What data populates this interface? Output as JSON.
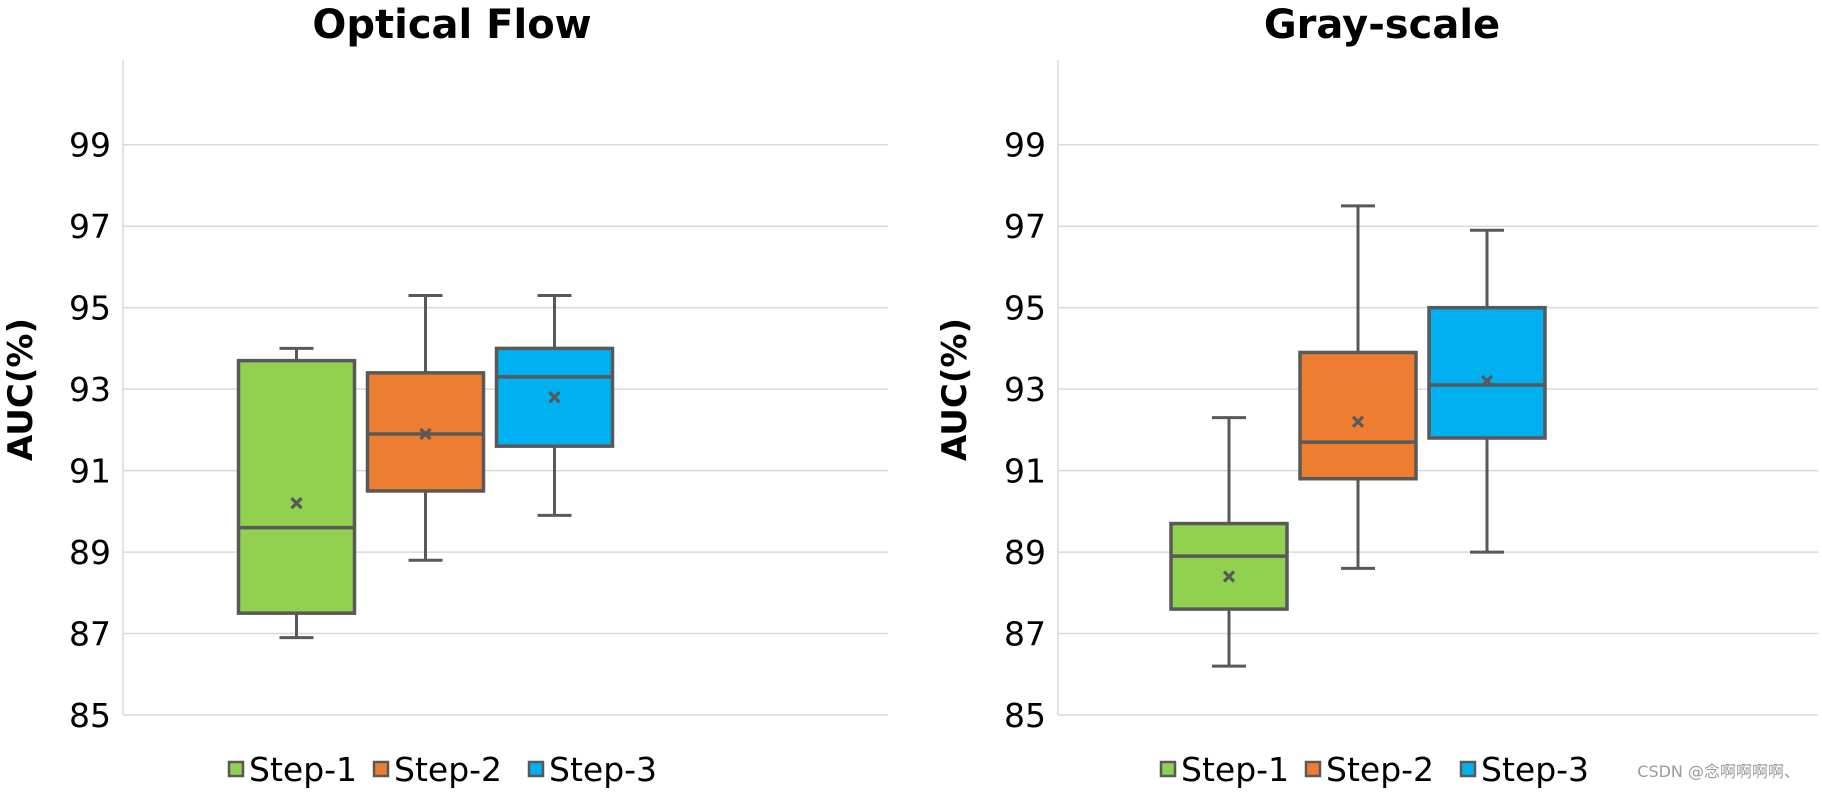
{
  "watermark": "CSDN @念啊啊啊啊、",
  "chart_data": [
    {
      "type": "box",
      "title": "Optical Flow",
      "ylabel": "AUC(%)",
      "ylim": [
        85,
        100
      ],
      "yticks": [
        85,
        87,
        89,
        91,
        93,
        95,
        97,
        99
      ],
      "grid": true,
      "legend_position": "bottom",
      "series": [
        {
          "name": "Step-1",
          "color": "#92d050",
          "min": 86.9,
          "q1": 87.5,
          "median": 89.6,
          "q3": 93.7,
          "max": 94.0,
          "mean": 90.2
        },
        {
          "name": "Step-2",
          "color": "#ed7d31",
          "min": 88.8,
          "q1": 90.5,
          "median": 91.9,
          "q3": 93.4,
          "max": 95.3,
          "mean": 91.9
        },
        {
          "name": "Step-3",
          "color": "#00b0f0",
          "min": 89.9,
          "q1": 91.6,
          "median": 93.3,
          "q3": 94.0,
          "max": 95.3,
          "mean": 92.8
        }
      ]
    },
    {
      "type": "box",
      "title": "Gray-scale",
      "ylabel": "AUC(%)",
      "ylim": [
        85,
        100
      ],
      "yticks": [
        85,
        87,
        89,
        91,
        93,
        95,
        97,
        99
      ],
      "grid": true,
      "legend_position": "bottom",
      "series": [
        {
          "name": "Step-1",
          "color": "#92d050",
          "min": 86.2,
          "q1": 87.6,
          "median": 88.9,
          "q3": 89.7,
          "max": 92.3,
          "mean": 88.4
        },
        {
          "name": "Step-2",
          "color": "#ed7d31",
          "min": 88.6,
          "q1": 90.8,
          "median": 91.7,
          "q3": 93.9,
          "max": 97.5,
          "mean": 92.2
        },
        {
          "name": "Step-3",
          "color": "#00b0f0",
          "min": 89.0,
          "q1": 91.8,
          "median": 93.1,
          "q3": 95.0,
          "max": 96.9,
          "mean": 93.2
        }
      ]
    }
  ]
}
